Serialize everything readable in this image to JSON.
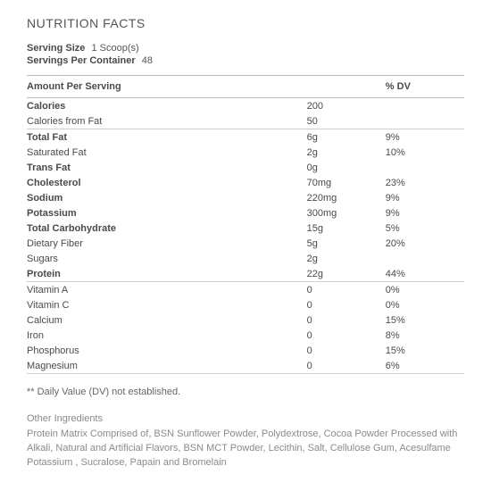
{
  "title": "NUTRITION FACTS",
  "serving": {
    "size_label": "Serving Size",
    "size_value": "1 Scoop(s)",
    "per_container_label": "Servings Per Container",
    "per_container_value": "48"
  },
  "headers": {
    "amount": "Amount Per Serving",
    "dv": "% DV"
  },
  "sections": [
    {
      "rows": [
        {
          "label": "Calories",
          "amount": "200",
          "dv": "",
          "bold": true,
          "indent": 0
        },
        {
          "label": "Calories from Fat",
          "amount": "50",
          "dv": "",
          "bold": false,
          "indent": 1
        }
      ]
    },
    {
      "rows": [
        {
          "label": "Total Fat",
          "amount": "6g",
          "dv": "9%",
          "bold": true,
          "indent": 0
        },
        {
          "label": "Saturated Fat",
          "amount": "2g",
          "dv": "10%",
          "bold": false,
          "indent": 1
        },
        {
          "label": "Trans Fat",
          "amount": "0g",
          "dv": "",
          "bold": true,
          "indent": 0
        },
        {
          "label": "Cholesterol",
          "amount": "70mg",
          "dv": "23%",
          "bold": true,
          "indent": 0
        },
        {
          "label": "Sodium",
          "amount": "220mg",
          "dv": "9%",
          "bold": true,
          "indent": 0
        },
        {
          "label": "Potassium",
          "amount": "300mg",
          "dv": "9%",
          "bold": true,
          "indent": 0
        },
        {
          "label": "Total Carbohydrate",
          "amount": "15g",
          "dv": "5%",
          "bold": true,
          "indent": 0
        },
        {
          "label": "Dietary Fiber",
          "amount": "5g",
          "dv": "20%",
          "bold": false,
          "indent": 1
        },
        {
          "label": "Sugars",
          "amount": "2g",
          "dv": "",
          "bold": false,
          "indent": 1
        },
        {
          "label": "Protein",
          "amount": "22g",
          "dv": "44%",
          "bold": true,
          "indent": 0
        }
      ]
    },
    {
      "rows": [
        {
          "label": "Vitamin A",
          "amount": "0",
          "dv": "0%",
          "bold": false,
          "indent": 0
        },
        {
          "label": "Vitamin C",
          "amount": "0",
          "dv": "0%",
          "bold": false,
          "indent": 0
        },
        {
          "label": "Calcium",
          "amount": "0",
          "dv": "15%",
          "bold": false,
          "indent": 0
        },
        {
          "label": "Iron",
          "amount": "0",
          "dv": "8%",
          "bold": false,
          "indent": 0
        },
        {
          "label": "Phosphorus",
          "amount": "0",
          "dv": "15%",
          "bold": false,
          "indent": 0
        },
        {
          "label": "Magnesium",
          "amount": "0",
          "dv": "6%",
          "bold": false,
          "indent": 0
        }
      ]
    }
  ],
  "footnote": "** Daily Value (DV) not established.",
  "other": {
    "title": "Other Ingredients",
    "body": "Protein Matrix Comprised of, BSN Sunflower Powder, Polydextrose, Cocoa Powder Processed with Alkali, Natural and Artificial Flavors, BSN MCT Powder, Lecithin, Salt, Cellulose Gum, Acesulfame Potassium , Sucralose, Papain and Bromelain"
  },
  "style": {
    "text_color": "#4a4a4a",
    "muted_color": "#8a8a8a",
    "rule_color_thick": "#bdbdbd",
    "rule_color_thin": "#d0d0d0",
    "background": "#ffffff",
    "base_fontsize": 11,
    "title_fontsize": 14
  }
}
